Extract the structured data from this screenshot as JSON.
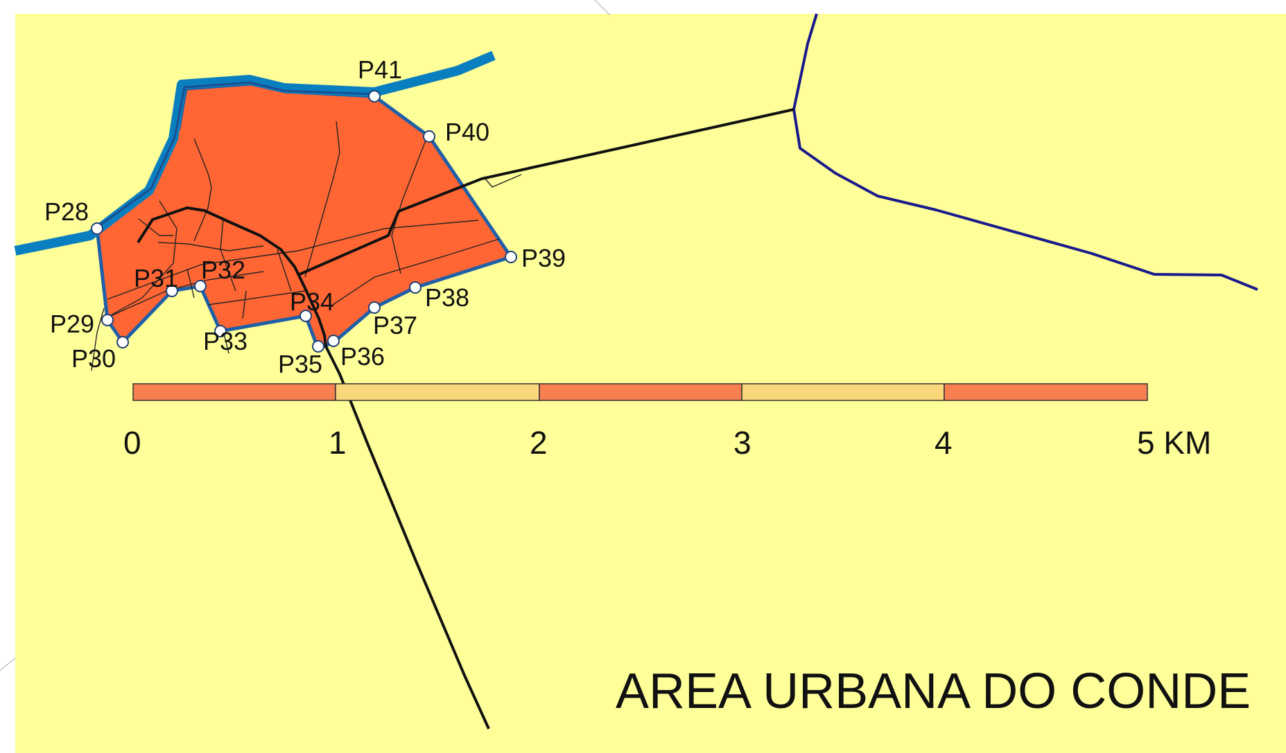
{
  "title": "AREA URBANA DO CONDE",
  "colors": {
    "background": "#ffff99",
    "urban_area": "#ff6633",
    "river": "#0a7fc0",
    "river_core": "#1a4f8f",
    "boundary": "#1f5fa8",
    "road": "#111111",
    "navy_line": "#1a1a8c",
    "scale_dark": "#f77f50",
    "scale_light": "#fbd77c"
  },
  "points": [
    {
      "id": "P28",
      "label": "P28"
    },
    {
      "id": "P29",
      "label": "P29"
    },
    {
      "id": "P30",
      "label": "P30"
    },
    {
      "id": "P31",
      "label": "P31"
    },
    {
      "id": "P32",
      "label": "P32"
    },
    {
      "id": "P33",
      "label": "P33"
    },
    {
      "id": "P34",
      "label": "P34"
    },
    {
      "id": "P35",
      "label": "P35"
    },
    {
      "id": "P36",
      "label": "P36"
    },
    {
      "id": "P37",
      "label": "P37"
    },
    {
      "id": "P38",
      "label": "P38"
    },
    {
      "id": "P39",
      "label": "P39"
    },
    {
      "id": "P40",
      "label": "P40"
    },
    {
      "id": "P41",
      "label": "P41"
    }
  ],
  "scale_bar": {
    "unit": "KM",
    "labels": [
      "0",
      "1",
      "2",
      "3",
      "4",
      "5 KM"
    ]
  }
}
